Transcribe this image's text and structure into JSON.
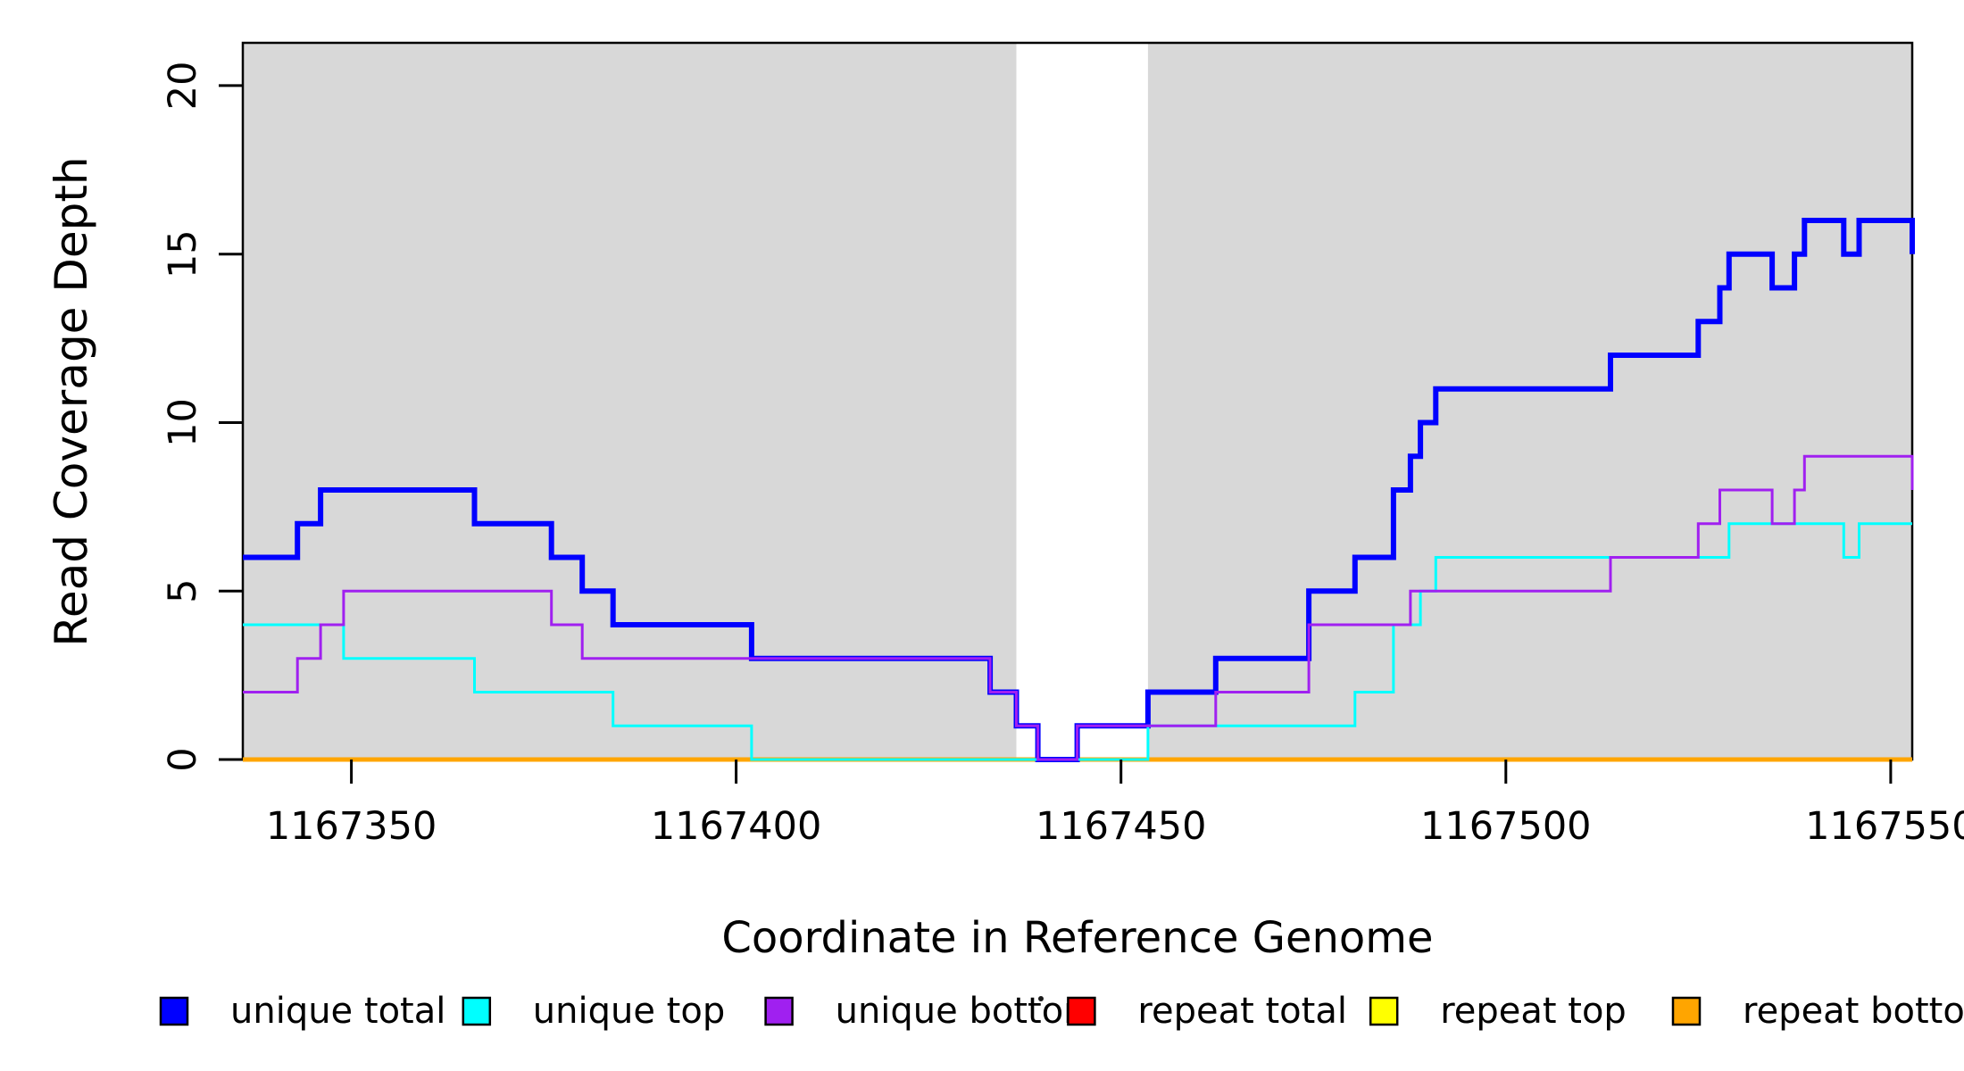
{
  "figure": {
    "background": "#ffffff",
    "frame_color": "#000000",
    "band_color": "#d8d8d8"
  },
  "chart_data": {
    "type": "line",
    "subtype": "step-coverage",
    "title": "",
    "xlabel": "Coordinate in Reference Genome",
    "ylabel": "Read Coverage Depth",
    "xlim": [
      1167335.9,
      1167552.8
    ],
    "ylim": [
      0,
      21.27
    ],
    "x_ticks": [
      1167350,
      1167400,
      1167450,
      1167500,
      1167550
    ],
    "y_ticks": [
      0,
      5,
      10,
      15,
      20
    ],
    "grid": false,
    "legend_position": "bottom",
    "shaded_regions": [
      {
        "x0": 1167335.9,
        "x1": 1167436.4
      },
      {
        "x0": 1167453.5,
        "x1": 1167552.8
      }
    ],
    "series": [
      {
        "name": "repeat total",
        "color": "#ff0000",
        "width": 3,
        "breakpoints": [
          [
            1167335.9,
            0
          ]
        ]
      },
      {
        "name": "repeat top",
        "color": "#ffff00",
        "width": 3,
        "breakpoints": [
          [
            1167335.9,
            0
          ]
        ]
      },
      {
        "name": "repeat bottom",
        "color": "#ffa500",
        "width": 5,
        "breakpoints": [
          [
            1167335.9,
            0
          ]
        ]
      },
      {
        "name": "unique total",
        "color": "#0000ff",
        "width": 6,
        "breakpoints": [
          [
            1167335.9,
            6
          ],
          [
            1167343,
            7
          ],
          [
            1167346,
            8
          ],
          [
            1167366,
            7
          ],
          [
            1167376,
            6
          ],
          [
            1167380,
            5
          ],
          [
            1167384,
            4
          ],
          [
            1167402,
            3
          ],
          [
            1167433,
            2
          ],
          [
            1167436.4,
            1
          ],
          [
            1167439.2,
            0
          ],
          [
            1167444.3,
            1
          ],
          [
            1167453.5,
            2
          ],
          [
            1167462.3,
            3
          ],
          [
            1167474.4,
            5
          ],
          [
            1167480.4,
            6
          ],
          [
            1167485.4,
            8
          ],
          [
            1167487.6,
            9
          ],
          [
            1167488.9,
            10
          ],
          [
            1167490.9,
            11
          ],
          [
            1167513.6,
            12
          ],
          [
            1167525,
            13
          ],
          [
            1167527.8,
            14
          ],
          [
            1167529,
            15
          ],
          [
            1167534.6,
            14
          ],
          [
            1167537.5,
            15
          ],
          [
            1167538.8,
            16
          ],
          [
            1167543.9,
            15
          ],
          [
            1167545.9,
            16
          ],
          [
            1167552.8,
            15
          ]
        ]
      },
      {
        "name": "unique top",
        "color": "#00ffff",
        "width": 3,
        "breakpoints": [
          [
            1167335.9,
            4
          ],
          [
            1167349,
            3
          ],
          [
            1167366,
            2
          ],
          [
            1167384,
            1
          ],
          [
            1167402,
            0
          ],
          [
            1167453.5,
            1
          ],
          [
            1167480.4,
            2
          ],
          [
            1167485.4,
            4
          ],
          [
            1167488.9,
            5
          ],
          [
            1167490.9,
            6
          ],
          [
            1167529,
            7
          ],
          [
            1167543.9,
            6
          ],
          [
            1167545.9,
            7
          ]
        ]
      },
      {
        "name": "unique bottom",
        "color": "#a020f0",
        "width": 3,
        "breakpoints": [
          [
            1167335.9,
            2
          ],
          [
            1167343,
            3
          ],
          [
            1167346,
            4
          ],
          [
            1167349,
            5
          ],
          [
            1167376,
            4
          ],
          [
            1167380,
            3
          ],
          [
            1167433,
            2
          ],
          [
            1167436.4,
            1
          ],
          [
            1167439.2,
            0
          ],
          [
            1167444.3,
            1
          ],
          [
            1167462.3,
            2
          ],
          [
            1167474.4,
            4
          ],
          [
            1167487.6,
            5
          ],
          [
            1167513.6,
            6
          ],
          [
            1167525,
            7
          ],
          [
            1167527.8,
            8
          ],
          [
            1167534.6,
            7
          ],
          [
            1167537.5,
            8
          ],
          [
            1167538.8,
            9
          ],
          [
            1167552.8,
            8
          ]
        ]
      }
    ],
    "legend": {
      "entries": [
        {
          "label": "unique total",
          "color": "#0000ff"
        },
        {
          "label": "unique top",
          "color": "#00ffff"
        },
        {
          "label": "unique bottom",
          "color": "#a020f0"
        },
        {
          "label": "repeat total",
          "color": "#ff0000"
        },
        {
          "label": "repeat top",
          "color": "#ffff00"
        },
        {
          "label": "repeat bottom",
          "color": "#ffa500"
        }
      ]
    }
  }
}
